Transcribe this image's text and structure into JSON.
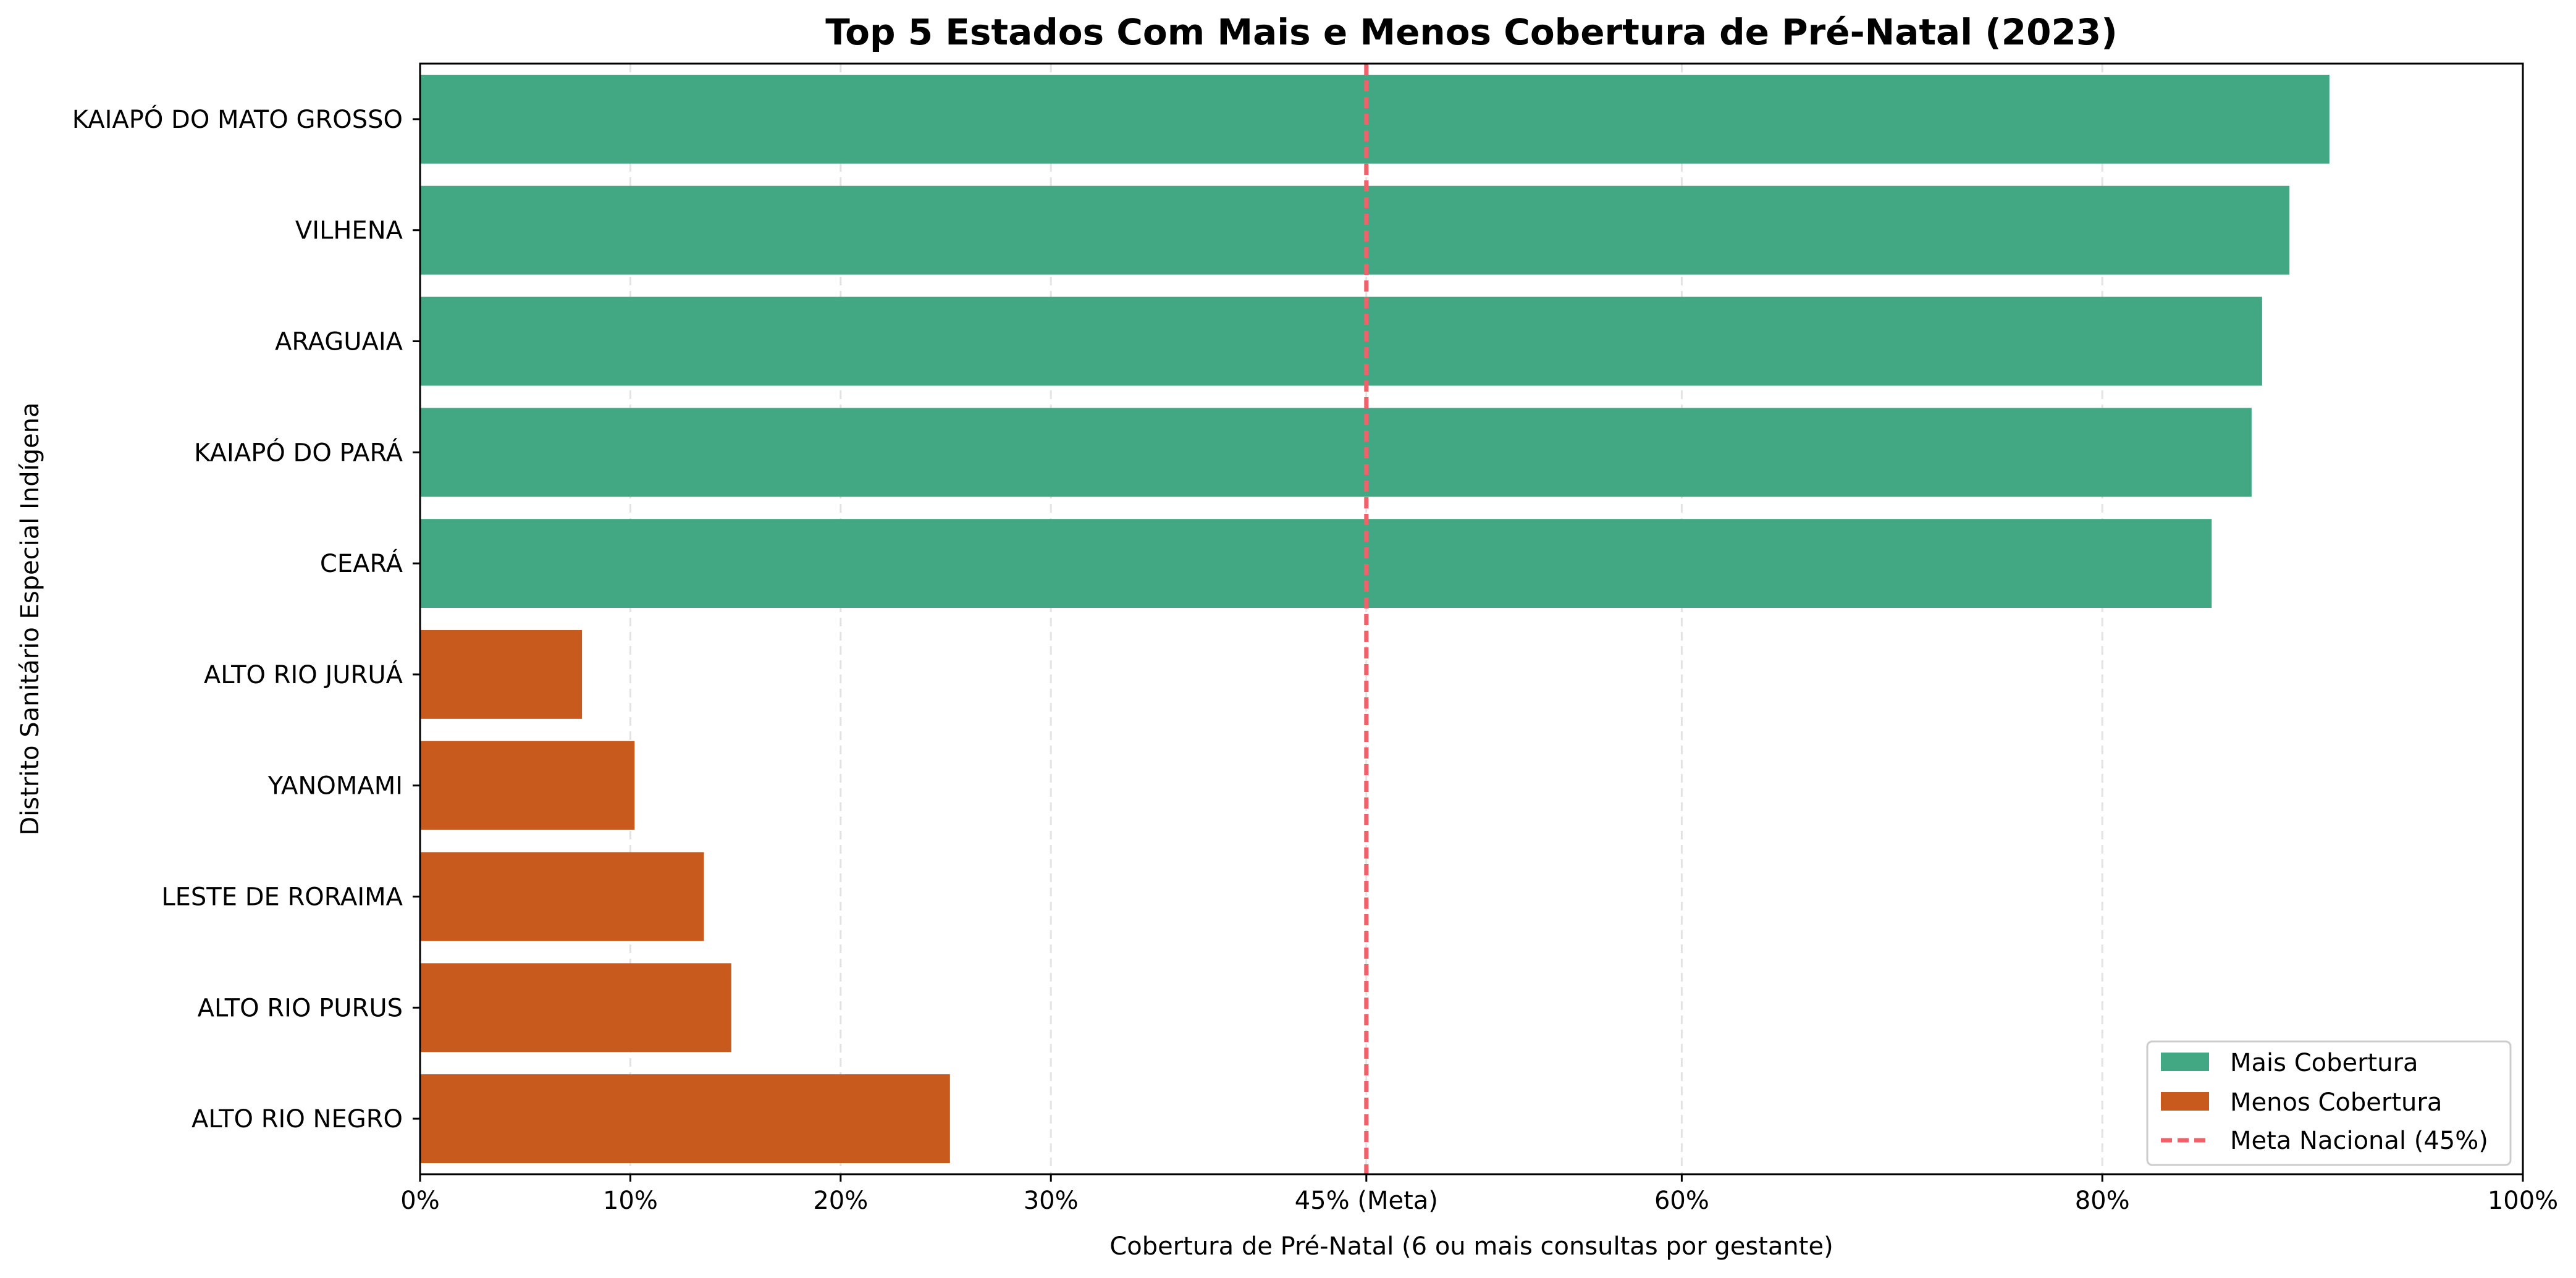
{
  "chart_data": {
    "type": "bar",
    "orientation": "horizontal",
    "title": "Top 5 Estados Com Mais e Menos Cobertura de Pré-Natal (2023)",
    "xlabel": "Cobertura de Pré-Natal (6 ou mais consultas por gestante)",
    "ylabel": "Distrito Sanitário Especial Indígena",
    "xlim": [
      0,
      100
    ],
    "x_ticks": [
      {
        "value": 0,
        "label": "0%"
      },
      {
        "value": 10,
        "label": "10%"
      },
      {
        "value": 20,
        "label": "20%"
      },
      {
        "value": 30,
        "label": "30%"
      },
      {
        "value": 45,
        "label": "45% (Meta)"
      },
      {
        "value": 60,
        "label": "60%"
      },
      {
        "value": 80,
        "label": "80%"
      },
      {
        "value": 100,
        "label": "100%"
      }
    ],
    "grid": "vertical dashed",
    "categories": [
      "KAIAPÓ DO MATO GROSSO",
      "VILHENA",
      "ARAGUAIA",
      "KAIAPÓ DO PARÁ",
      "CEARÁ",
      "ALTO RIO JURUÁ",
      "YANOMAMI",
      "LESTE DE RORAIMA",
      "ALTO RIO PURUS",
      "ALTO RIO NEGRO"
    ],
    "values": [
      90.8,
      88.9,
      87.6,
      87.1,
      85.2,
      7.7,
      10.2,
      13.5,
      14.8,
      25.2
    ],
    "groups": [
      "mais",
      "mais",
      "mais",
      "mais",
      "mais",
      "menos",
      "menos",
      "menos",
      "menos",
      "menos"
    ],
    "series": [
      {
        "key": "mais",
        "name": "Mais Cobertura",
        "color": "#41a883"
      },
      {
        "key": "menos",
        "name": "Menos Cobertura",
        "color": "#c85a1e"
      }
    ],
    "reference_line": {
      "value": 45,
      "name": "Meta Nacional (45%)",
      "color": "#f2606a",
      "style": "dashed"
    },
    "legend_position": "bottom-right"
  }
}
